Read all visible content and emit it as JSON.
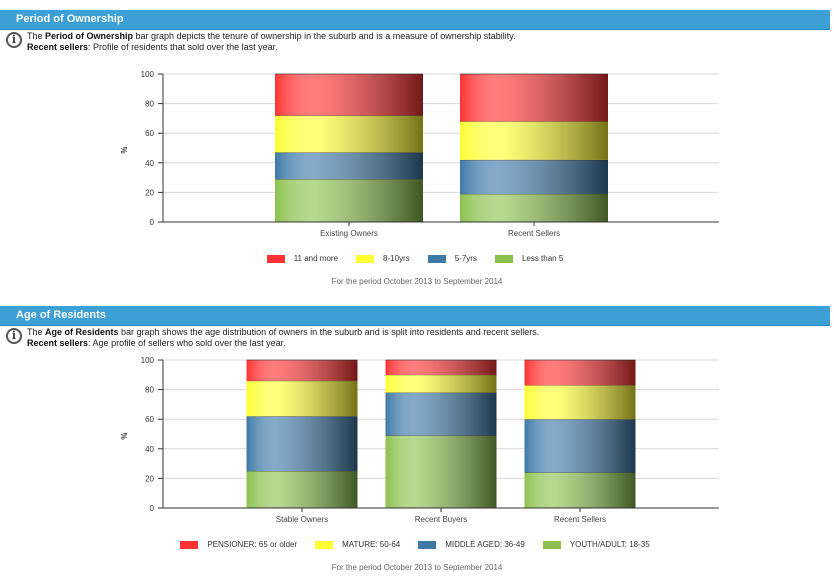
{
  "colors": {
    "header_bg": "#3c9fd6",
    "series": [
      "#ff3333",
      "#ffff33",
      "#3f79a8",
      "#8cc14f"
    ]
  },
  "sections": [
    {
      "title": "Period of Ownership",
      "desc_pre": "The ",
      "desc_bold": "Period of Ownership",
      "desc_post": " bar graph depicts the tenure of ownership in the suburb and is a measure of ownership stability.",
      "sellers_label": "Recent sellers",
      "sellers_text": ": Profile of residents that sold over the last year.",
      "period": "For the period October 2013 to September 2014"
    },
    {
      "title": "Age of Residents",
      "desc_pre": "The ",
      "desc_bold": "Age of Residents",
      "desc_post": " bar graph shows the age distribution of owners in the suburb and is split into residents and recent sellers.",
      "sellers_label": "Recent sellers",
      "sellers_text": ": Age profile of sellers who sold over the last year.",
      "period": "For the period October 2013 to September 2014"
    }
  ],
  "chart_data": [
    {
      "type": "bar",
      "stacked": true,
      "title": "",
      "ylabel": "%",
      "ylim": [
        0,
        100
      ],
      "yticks": [
        "0",
        "20",
        "40",
        "60",
        "80",
        "100"
      ],
      "categories": [
        "Existing Owners",
        "Recent Sellers"
      ],
      "series": [
        {
          "name": "Less than 5",
          "values": [
            29,
            19
          ]
        },
        {
          "name": "5-7yrs",
          "values": [
            18,
            23
          ]
        },
        {
          "name": "8-10yrs",
          "values": [
            25,
            26
          ]
        },
        {
          "name": "11 and more",
          "values": [
            28,
            32
          ]
        }
      ],
      "legend": [
        "11 and more",
        "8-10yrs",
        "5-7yrs",
        "Less than 5"
      ],
      "grid": true,
      "legend_position": "bottom"
    },
    {
      "type": "bar",
      "stacked": true,
      "title": "",
      "ylabel": "%",
      "ylim": [
        0,
        100
      ],
      "yticks": [
        "0",
        "20",
        "40",
        "60",
        "80",
        "100"
      ],
      "categories": [
        "Stable Owners",
        "Recent Buyers",
        "Recent Sellers"
      ],
      "series": [
        {
          "name": "YOUTH/ADULT: 18-35",
          "values": [
            25,
            49,
            24
          ]
        },
        {
          "name": "MIDDLE AGED: 36-49",
          "values": [
            37,
            29,
            36
          ]
        },
        {
          "name": "MATURE: 50-64",
          "values": [
            24,
            12,
            23
          ]
        },
        {
          "name": "PENSIONER: 65 or older",
          "values": [
            14,
            10,
            17
          ]
        }
      ],
      "legend": [
        "PENSIONER: 65 or older",
        "MATURE: 50-64",
        "MIDDLE AGED: 36-49",
        "YOUTH/ADULT: 18-35"
      ],
      "grid": true,
      "legend_position": "bottom"
    }
  ]
}
